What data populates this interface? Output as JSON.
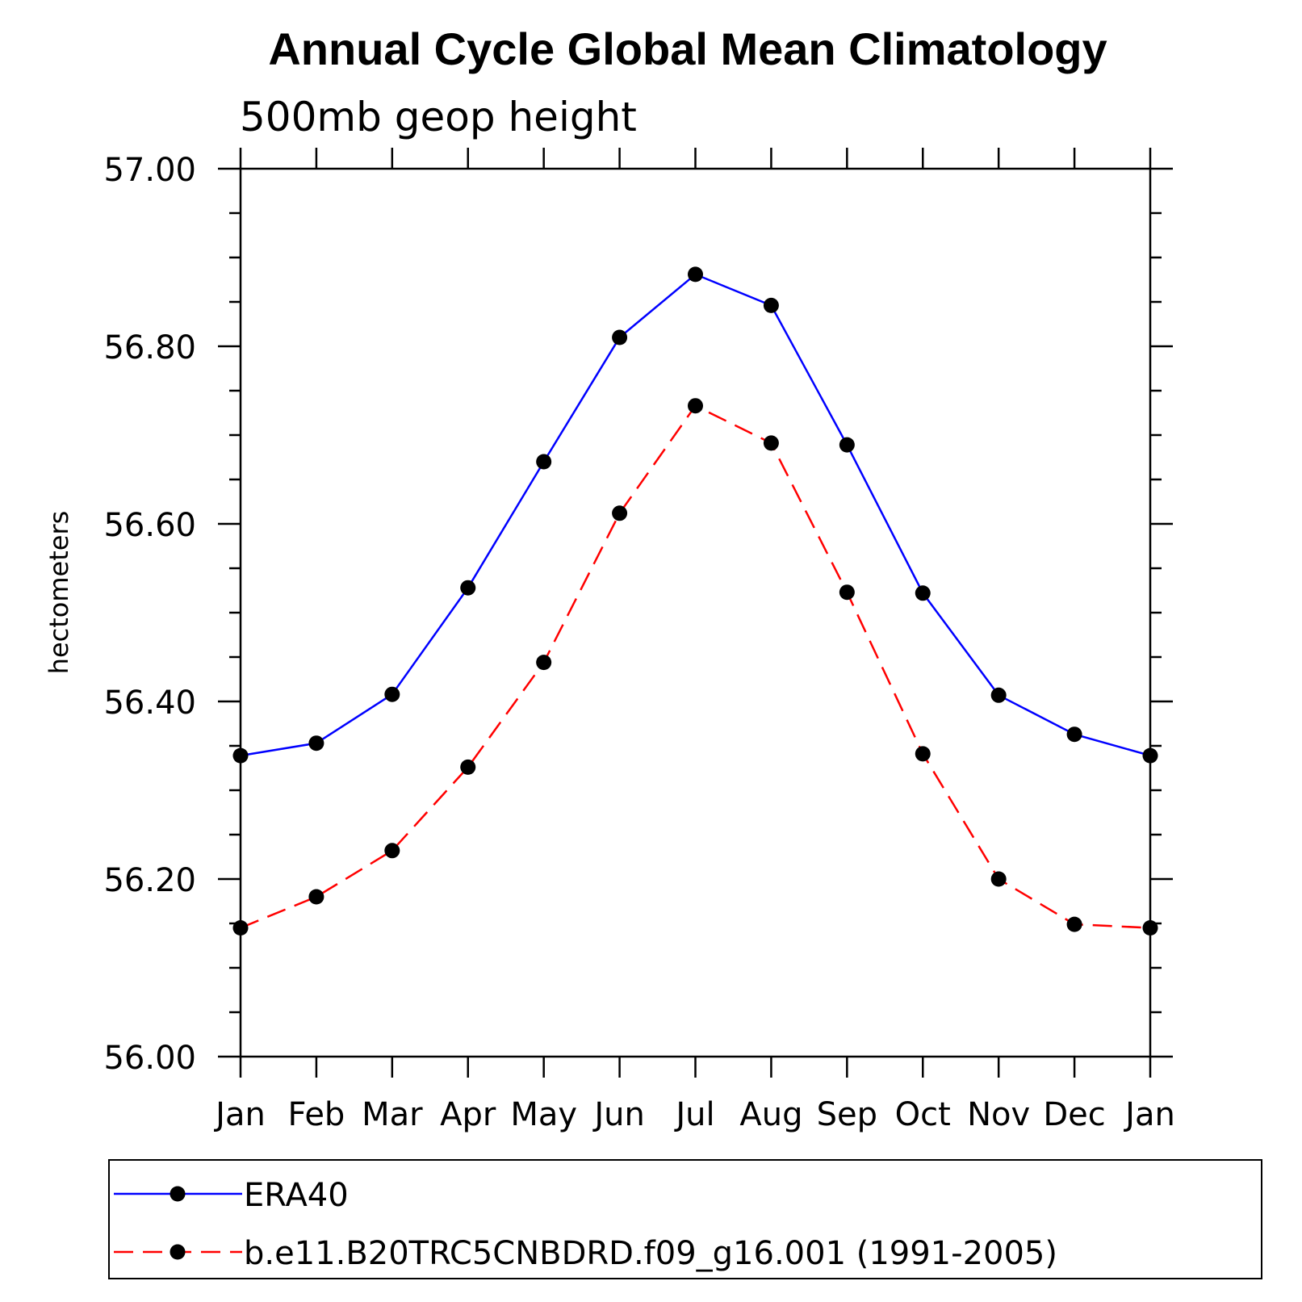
{
  "chart_data": {
    "type": "line",
    "title": "Annual Cycle Global Mean Climatology",
    "subtitle": "500mb geop height",
    "ylabel": "hectometers",
    "xlabel": "",
    "categories": [
      "Jan",
      "Feb",
      "Mar",
      "Apr",
      "May",
      "Jun",
      "Jul",
      "Aug",
      "Sep",
      "Oct",
      "Nov",
      "Dec",
      "Jan"
    ],
    "ylim": [
      56.0,
      57.0
    ],
    "y_ticks": [
      "56.00",
      "56.20",
      "56.40",
      "56.60",
      "56.80",
      "57.00"
    ],
    "grid": false,
    "legend_position": "bottom",
    "series": [
      {
        "name": "ERA40",
        "color": "#0000ff",
        "line_style": "solid",
        "marker": "filled-circle",
        "values": [
          56.339,
          56.353,
          56.408,
          56.528,
          56.67,
          56.81,
          56.881,
          56.846,
          56.689,
          56.522,
          56.407,
          56.363,
          56.339
        ]
      },
      {
        "name": "b.e11.B20TRC5CNBDRD.f09_g16.001 (1991-2005)",
        "color": "#ff0000",
        "line_style": "dashed",
        "marker": "filled-circle",
        "values": [
          56.145,
          56.18,
          56.232,
          56.326,
          56.444,
          56.612,
          56.733,
          56.691,
          56.523,
          56.341,
          56.2,
          56.149,
          56.145
        ]
      }
    ]
  }
}
